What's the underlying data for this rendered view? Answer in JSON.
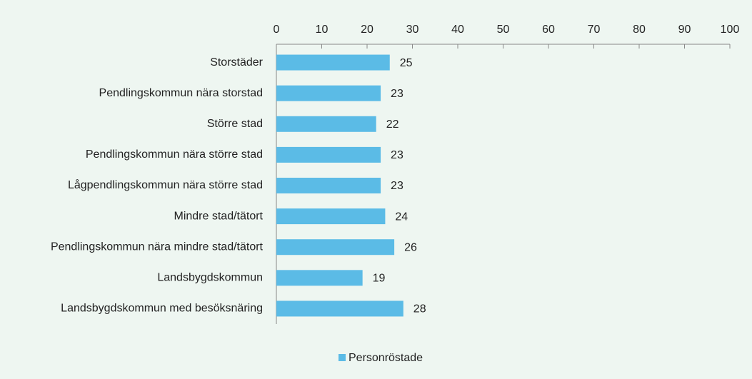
{
  "chart_data": {
    "type": "bar",
    "orientation": "horizontal",
    "categories": [
      "Storstäder",
      "Pendlingskommun nära storstad",
      "Större stad",
      "Pendlingskommun nära större stad",
      "Lågpendlingskommun nära större stad",
      "Mindre stad/tätort",
      "Pendlingskommun nära mindre stad/tätort",
      "Landsbygdskommun",
      "Landsbygdskommun med besöksnäring"
    ],
    "series": [
      {
        "name": "Personröstade",
        "color": "#5bbbe6",
        "values": [
          25,
          23,
          22,
          23,
          23,
          24,
          26,
          19,
          28
        ]
      }
    ],
    "xlim": [
      0,
      100
    ],
    "xticks": [
      0,
      10,
      20,
      30,
      40,
      50,
      60,
      70,
      80,
      90,
      100
    ],
    "legend": "bottom"
  }
}
